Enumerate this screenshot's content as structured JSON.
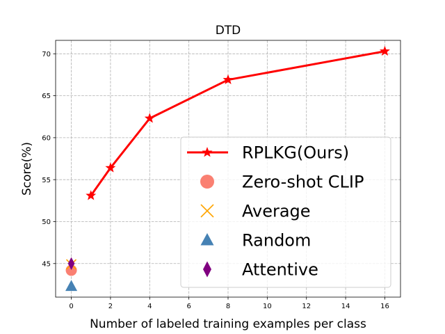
{
  "chart_data": {
    "type": "line",
    "title": "DTD",
    "xlabel": "Number of labeled training examples per class",
    "ylabel": "Score(%)",
    "xlim": [
      -0.8,
      16.8
    ],
    "ylim": [
      41.0,
      71.6
    ],
    "xticks": [
      0,
      2,
      4,
      6,
      8,
      10,
      12,
      14,
      16
    ],
    "yticks": [
      45,
      50,
      55,
      60,
      65,
      70
    ],
    "grid": true,
    "legend_position": "lower-right",
    "series": [
      {
        "name": "RPLKG(Ours)",
        "type": "line",
        "marker": "star",
        "color": "#ff0000",
        "x": [
          1,
          2,
          4,
          8,
          16
        ],
        "y": [
          53.1,
          56.4,
          62.3,
          66.9,
          70.3
        ]
      },
      {
        "name": "Zero-shot CLIP",
        "type": "scatter",
        "marker": "circle",
        "color": "#fa8072",
        "x": [
          0
        ],
        "y": [
          44.2
        ]
      },
      {
        "name": "Average",
        "type": "scatter",
        "marker": "x",
        "color": "#ffa500",
        "x": [
          0
        ],
        "y": [
          44.9
        ]
      },
      {
        "name": "Random",
        "type": "scatter",
        "marker": "triangle",
        "color": "#4682b4",
        "x": [
          0
        ],
        "y": [
          42.3
        ]
      },
      {
        "name": "Attentive",
        "type": "scatter",
        "marker": "diamond",
        "color": "#800080",
        "x": [
          0
        ],
        "y": [
          45.0
        ]
      }
    ]
  }
}
